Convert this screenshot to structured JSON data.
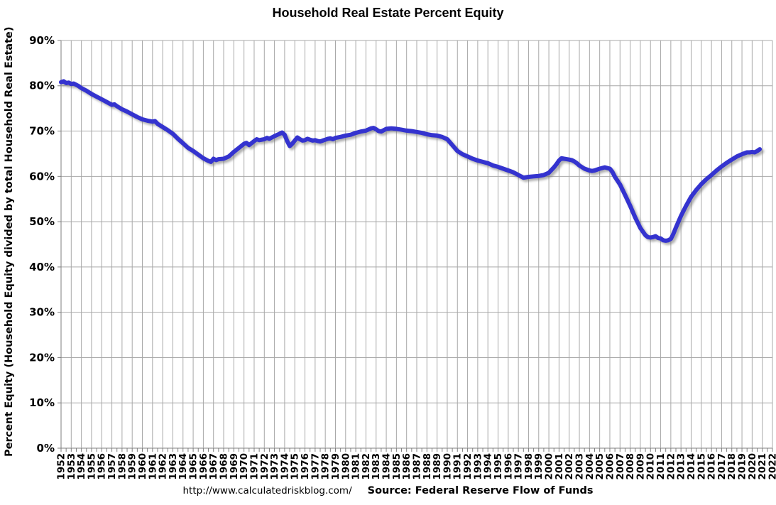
{
  "footer": {
    "url": "http://www.calculatedriskblog.com/",
    "source": "Source: Federal Reserve Flow of Funds"
  },
  "colors": {
    "line": "#3433cf",
    "gridline": "#a8a8a8",
    "axis": "#7f7f7f",
    "text": "#000000",
    "background": "#ffffff"
  },
  "chart_data": {
    "type": "line",
    "title": "Household Real Estate Percent Equity",
    "xlabel": "",
    "ylabel": "Percent Equity (Household Equity divided by total Household Real Estate)",
    "xlim": [
      1952,
      2022
    ],
    "ylim": [
      0,
      90
    ],
    "grid": true,
    "legend": "none",
    "y_ticks": [
      {
        "value": 0,
        "label": "0%"
      },
      {
        "value": 10,
        "label": "10%"
      },
      {
        "value": 20,
        "label": "20%"
      },
      {
        "value": 30,
        "label": "30%"
      },
      {
        "value": 40,
        "label": "40%"
      },
      {
        "value": 50,
        "label": "50%"
      },
      {
        "value": 60,
        "label": "60%"
      },
      {
        "value": 70,
        "label": "70%"
      },
      {
        "value": 80,
        "label": "80%"
      },
      {
        "value": 90,
        "label": "90%"
      }
    ],
    "x_tick_labels": [
      "1952",
      "1953",
      "1954",
      "1955",
      "1956",
      "1957",
      "1958",
      "1959",
      "1960",
      "1961",
      "1962",
      "1963",
      "1964",
      "1965",
      "1966",
      "1967",
      "1968",
      "1969",
      "1970",
      "1971",
      "1972",
      "1973",
      "1974",
      "1975",
      "1976",
      "1977",
      "1978",
      "1979",
      "1980",
      "1981",
      "1982",
      "1983",
      "1984",
      "1985",
      "1986",
      "1987",
      "1988",
      "1989",
      "1990",
      "1991",
      "1992",
      "1993",
      "1994",
      "1995",
      "1996",
      "1997",
      "1998",
      "1999",
      "2000",
      "2001",
      "2002",
      "2003",
      "2004",
      "2005",
      "2006",
      "2007",
      "2008",
      "2009",
      "2010",
      "2011",
      "2012",
      "2013",
      "2014",
      "2015",
      "2016",
      "2017",
      "2018",
      "2019",
      "2020",
      "2021",
      "2022"
    ],
    "series": [
      {
        "name": "Household Real Estate Percent Equity",
        "units": "percent",
        "points": [
          [
            1952,
            80.8
          ],
          [
            1952.25,
            81.0
          ],
          [
            1952.5,
            80.6
          ],
          [
            1952.75,
            80.7
          ],
          [
            1953,
            80.4
          ],
          [
            1953.25,
            80.5
          ],
          [
            1953.5,
            80.2
          ],
          [
            1953.75,
            79.9
          ],
          [
            1954,
            79.5
          ],
          [
            1954.5,
            78.9
          ],
          [
            1955,
            78.2
          ],
          [
            1955.5,
            77.6
          ],
          [
            1956,
            77.0
          ],
          [
            1956.5,
            76.4
          ],
          [
            1957,
            75.8
          ],
          [
            1957.25,
            75.9
          ],
          [
            1957.5,
            75.5
          ],
          [
            1958,
            74.8
          ],
          [
            1958.5,
            74.3
          ],
          [
            1959,
            73.7
          ],
          [
            1959.5,
            73.1
          ],
          [
            1960,
            72.6
          ],
          [
            1960.5,
            72.3
          ],
          [
            1961,
            72.1
          ],
          [
            1961.25,
            72.2
          ],
          [
            1961.5,
            71.6
          ],
          [
            1962,
            70.9
          ],
          [
            1962.5,
            70.2
          ],
          [
            1963,
            69.4
          ],
          [
            1963.5,
            68.3
          ],
          [
            1964,
            67.3
          ],
          [
            1964.5,
            66.3
          ],
          [
            1965,
            65.6
          ],
          [
            1965.5,
            64.8
          ],
          [
            1966,
            64.0
          ],
          [
            1966.5,
            63.4
          ],
          [
            1966.75,
            63.2
          ],
          [
            1967,
            63.9
          ],
          [
            1967.25,
            63.6
          ],
          [
            1967.5,
            63.8
          ],
          [
            1968,
            63.9
          ],
          [
            1968.5,
            64.4
          ],
          [
            1969,
            65.4
          ],
          [
            1969.5,
            66.3
          ],
          [
            1970,
            67.2
          ],
          [
            1970.25,
            67.4
          ],
          [
            1970.5,
            66.9
          ],
          [
            1971,
            67.8
          ],
          [
            1971.25,
            68.2
          ],
          [
            1971.5,
            68.0
          ],
          [
            1972,
            68.2
          ],
          [
            1972.25,
            68.5
          ],
          [
            1972.5,
            68.3
          ],
          [
            1973,
            68.9
          ],
          [
            1973.5,
            69.4
          ],
          [
            1973.75,
            69.7
          ],
          [
            1974,
            69.2
          ],
          [
            1974.25,
            67.8
          ],
          [
            1974.5,
            66.7
          ],
          [
            1974.75,
            67.2
          ],
          [
            1975,
            67.9
          ],
          [
            1975.25,
            68.6
          ],
          [
            1975.5,
            68.2
          ],
          [
            1975.75,
            67.9
          ],
          [
            1976,
            68.0
          ],
          [
            1976.25,
            68.3
          ],
          [
            1976.5,
            68.1
          ],
          [
            1976.75,
            67.9
          ],
          [
            1977,
            68.0
          ],
          [
            1977.25,
            67.8
          ],
          [
            1977.5,
            67.7
          ],
          [
            1977.75,
            67.9
          ],
          [
            1978,
            68.1
          ],
          [
            1978.25,
            68.3
          ],
          [
            1978.5,
            68.4
          ],
          [
            1978.75,
            68.2
          ],
          [
            1979,
            68.5
          ],
          [
            1979.5,
            68.7
          ],
          [
            1980,
            69.0
          ],
          [
            1980.5,
            69.2
          ],
          [
            1981,
            69.6
          ],
          [
            1981.5,
            69.9
          ],
          [
            1982,
            70.1
          ],
          [
            1982.5,
            70.6
          ],
          [
            1982.75,
            70.7
          ],
          [
            1983,
            70.4
          ],
          [
            1983.25,
            70.0
          ],
          [
            1983.5,
            69.9
          ],
          [
            1983.75,
            70.2
          ],
          [
            1984,
            70.5
          ],
          [
            1984.5,
            70.6
          ],
          [
            1985,
            70.5
          ],
          [
            1985.5,
            70.3
          ],
          [
            1986,
            70.1
          ],
          [
            1986.5,
            70.0
          ],
          [
            1987,
            69.8
          ],
          [
            1987.5,
            69.6
          ],
          [
            1988,
            69.3
          ],
          [
            1988.5,
            69.1
          ],
          [
            1989,
            69.0
          ],
          [
            1989.5,
            68.7
          ],
          [
            1990,
            68.2
          ],
          [
            1990.5,
            66.9
          ],
          [
            1991,
            65.6
          ],
          [
            1991.5,
            64.9
          ],
          [
            1992,
            64.4
          ],
          [
            1992.5,
            63.9
          ],
          [
            1993,
            63.5
          ],
          [
            1993.5,
            63.2
          ],
          [
            1994,
            62.9
          ],
          [
            1994.5,
            62.4
          ],
          [
            1995,
            62.1
          ],
          [
            1995.5,
            61.7
          ],
          [
            1996,
            61.3
          ],
          [
            1996.5,
            60.9
          ],
          [
            1997,
            60.3
          ],
          [
            1997.25,
            60.0
          ],
          [
            1997.5,
            59.7
          ],
          [
            1998,
            59.9
          ],
          [
            1998.5,
            60.0
          ],
          [
            1999,
            60.1
          ],
          [
            1999.5,
            60.3
          ],
          [
            2000,
            60.8
          ],
          [
            2000.5,
            62.0
          ],
          [
            2000.75,
            62.7
          ],
          [
            2001,
            63.5
          ],
          [
            2001.25,
            64.0
          ],
          [
            2001.5,
            63.9
          ],
          [
            2001.75,
            63.8
          ],
          [
            2002,
            63.7
          ],
          [
            2002.25,
            63.6
          ],
          [
            2002.5,
            63.3
          ],
          [
            2002.75,
            62.9
          ],
          [
            2003,
            62.4
          ],
          [
            2003.5,
            61.7
          ],
          [
            2004,
            61.3
          ],
          [
            2004.25,
            61.2
          ],
          [
            2004.5,
            61.3
          ],
          [
            2005,
            61.7
          ],
          [
            2005.5,
            62.0
          ],
          [
            2006,
            61.7
          ],
          [
            2006.25,
            61.0
          ],
          [
            2006.5,
            59.9
          ],
          [
            2007,
            58.2
          ],
          [
            2007.5,
            55.9
          ],
          [
            2008,
            53.5
          ],
          [
            2008.5,
            50.9
          ],
          [
            2009,
            48.6
          ],
          [
            2009.5,
            47.0
          ],
          [
            2009.75,
            46.6
          ],
          [
            2010,
            46.5
          ],
          [
            2010.25,
            46.6
          ],
          [
            2010.5,
            46.8
          ],
          [
            2010.75,
            46.4
          ],
          [
            2011,
            46.3
          ],
          [
            2011.25,
            45.9
          ],
          [
            2011.5,
            45.8
          ],
          [
            2011.75,
            45.9
          ],
          [
            2012,
            46.2
          ],
          [
            2012.25,
            47.3
          ],
          [
            2012.5,
            48.7
          ],
          [
            2012.75,
            50.0
          ],
          [
            2013,
            51.3
          ],
          [
            2013.5,
            53.5
          ],
          [
            2014,
            55.5
          ],
          [
            2014.5,
            57.0
          ],
          [
            2015,
            58.3
          ],
          [
            2015.5,
            59.4
          ],
          [
            2016,
            60.3
          ],
          [
            2016.5,
            61.3
          ],
          [
            2017,
            62.2
          ],
          [
            2017.5,
            63.0
          ],
          [
            2018,
            63.7
          ],
          [
            2018.5,
            64.4
          ],
          [
            2019,
            64.9
          ],
          [
            2019.25,
            65.1
          ],
          [
            2019.5,
            65.3
          ],
          [
            2019.75,
            65.3
          ],
          [
            2020,
            65.4
          ],
          [
            2020.25,
            65.3
          ],
          [
            2020.5,
            65.6
          ],
          [
            2020.75,
            66.0
          ]
        ]
      }
    ]
  }
}
